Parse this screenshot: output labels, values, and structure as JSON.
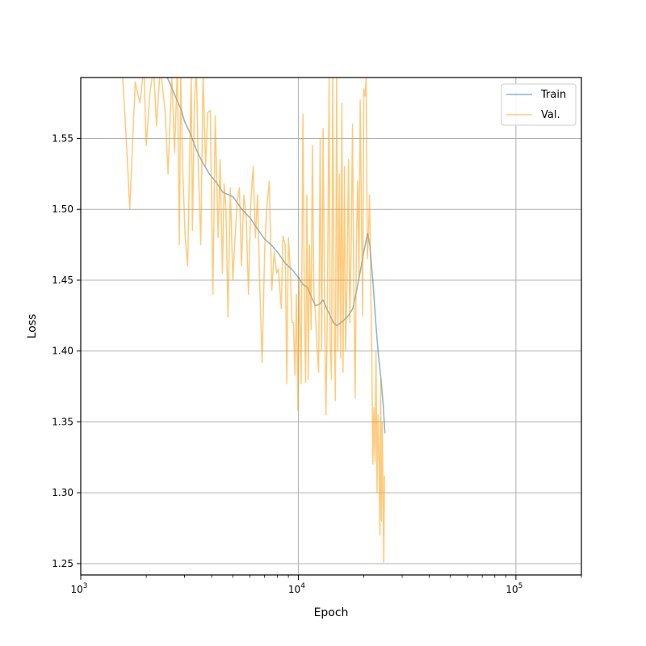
{
  "chart_data": {
    "type": "line",
    "xlabel": "Epoch",
    "ylabel": "Loss",
    "x_scale": "log",
    "xlim": [
      1000,
      200000
    ],
    "ylim": [
      1.242,
      1.593
    ],
    "x_ticks": [
      {
        "value": 1000,
        "base": "10",
        "exp": "3"
      },
      {
        "value": 10000,
        "base": "10",
        "exp": "4"
      },
      {
        "value": 100000,
        "base": "10",
        "exp": "5"
      }
    ],
    "y_ticks": [
      "1.25",
      "1.30",
      "1.35",
      "1.40",
      "1.45",
      "1.50",
      "1.55"
    ],
    "grid": true,
    "legend_position": "top-right",
    "series": [
      {
        "name": "Train",
        "color": "#1f77b4",
        "points": [
          [
            2500,
            1.593
          ],
          [
            2600,
            1.587
          ],
          [
            2750,
            1.578
          ],
          [
            2900,
            1.57
          ],
          [
            3000,
            1.562
          ],
          [
            3200,
            1.553
          ],
          [
            3400,
            1.542
          ],
          [
            3600,
            1.534
          ],
          [
            3900,
            1.525
          ],
          [
            4200,
            1.519
          ],
          [
            4500,
            1.512
          ],
          [
            5000,
            1.509
          ],
          [
            5500,
            1.5
          ],
          [
            6000,
            1.494
          ],
          [
            6500,
            1.486
          ],
          [
            7000,
            1.479
          ],
          [
            7500,
            1.475
          ],
          [
            8000,
            1.47
          ],
          [
            8700,
            1.462
          ],
          [
            9300,
            1.458
          ],
          [
            10000,
            1.452
          ],
          [
            10500,
            1.447
          ],
          [
            11000,
            1.445
          ],
          [
            11500,
            1.438
          ],
          [
            12000,
            1.432
          ],
          [
            12500,
            1.433
          ],
          [
            13000,
            1.436
          ],
          [
            13500,
            1.43
          ],
          [
            14000,
            1.425
          ],
          [
            14500,
            1.42
          ],
          [
            15000,
            1.418
          ],
          [
            16000,
            1.421
          ],
          [
            17000,
            1.425
          ],
          [
            17800,
            1.43
          ],
          [
            18500,
            1.442
          ],
          [
            19200,
            1.455
          ],
          [
            20000,
            1.47
          ],
          [
            20800,
            1.483
          ],
          [
            21300,
            1.475
          ],
          [
            22000,
            1.45
          ],
          [
            22700,
            1.42
          ],
          [
            23400,
            1.395
          ],
          [
            24000,
            1.38
          ],
          [
            24600,
            1.36
          ],
          [
            25000,
            1.342
          ]
        ]
      },
      {
        "name": "Val.",
        "color": "#ff9f0e",
        "points": [
          [
            1400,
            1.593
          ],
          [
            1550,
            1.6
          ],
          [
            1630,
            1.541
          ],
          [
            1680,
            1.5
          ],
          [
            1780,
            1.59
          ],
          [
            1870,
            1.575
          ],
          [
            1950,
            1.6
          ],
          [
            2000,
            1.545
          ],
          [
            2080,
            1.582
          ],
          [
            2160,
            1.6
          ],
          [
            2230,
            1.559
          ],
          [
            2320,
            1.6
          ],
          [
            2440,
            1.57
          ],
          [
            2520,
            1.525
          ],
          [
            2620,
            1.595
          ],
          [
            2700,
            1.54
          ],
          [
            2780,
            1.6
          ],
          [
            2840,
            1.475
          ],
          [
            2880,
            1.595
          ],
          [
            2940,
            1.53
          ],
          [
            3020,
            1.48
          ],
          [
            3100,
            1.46
          ],
          [
            3150,
            1.518
          ],
          [
            3220,
            1.595
          ],
          [
            3260,
            1.485
          ],
          [
            3330,
            1.575
          ],
          [
            3400,
            1.6
          ],
          [
            3470,
            1.53
          ],
          [
            3560,
            1.475
          ],
          [
            3650,
            1.595
          ],
          [
            3750,
            1.53
          ],
          [
            3830,
            1.568
          ],
          [
            3940,
            1.57
          ],
          [
            4050,
            1.44
          ],
          [
            4150,
            1.566
          ],
          [
            4280,
            1.48
          ],
          [
            4370,
            1.535
          ],
          [
            4480,
            1.455
          ],
          [
            4560,
            1.518
          ],
          [
            4650,
            1.5
          ],
          [
            4750,
            1.424
          ],
          [
            4870,
            1.515
          ],
          [
            5000,
            1.45
          ],
          [
            5100,
            1.475
          ],
          [
            5230,
            1.505
          ],
          [
            5360,
            1.515
          ],
          [
            5480,
            1.46
          ],
          [
            5620,
            1.51
          ],
          [
            5760,
            1.495
          ],
          [
            5900,
            1.44
          ],
          [
            6050,
            1.505
          ],
          [
            6200,
            1.53
          ],
          [
            6350,
            1.48
          ],
          [
            6500,
            1.51
          ],
          [
            6650,
            1.445
          ],
          [
            6820,
            1.392
          ],
          [
            7000,
            1.47
          ],
          [
            7150,
            1.5
          ],
          [
            7350,
            1.52
          ],
          [
            7550,
            1.443
          ],
          [
            7750,
            1.47
          ],
          [
            7950,
            1.455
          ],
          [
            8100,
            1.458
          ],
          [
            8350,
            1.43
          ],
          [
            8500,
            1.481
          ],
          [
            8700,
            1.475
          ],
          [
            8850,
            1.377
          ],
          [
            9000,
            1.48
          ],
          [
            9200,
            1.455
          ],
          [
            9350,
            1.42
          ],
          [
            9500,
            1.42
          ],
          [
            9650,
            1.383
          ],
          [
            9800,
            1.44
          ],
          [
            9950,
            1.358
          ],
          [
            10100,
            1.452
          ],
          [
            10300,
            1.377
          ],
          [
            10500,
            1.567
          ],
          [
            10650,
            1.44
          ],
          [
            10800,
            1.378
          ],
          [
            10950,
            1.51
          ],
          [
            11100,
            1.38
          ],
          [
            11250,
            1.475
          ],
          [
            11450,
            1.415
          ],
          [
            11600,
            1.545
          ],
          [
            11800,
            1.44
          ],
          [
            12000,
            1.425
          ],
          [
            12200,
            1.4
          ],
          [
            12400,
            1.385
          ],
          [
            12600,
            1.55
          ],
          [
            12800,
            1.4
          ],
          [
            13000,
            1.557
          ],
          [
            13200,
            1.43
          ],
          [
            13400,
            1.355
          ],
          [
            13600,
            1.43
          ],
          [
            13850,
            1.593
          ],
          [
            14000,
            1.41
          ],
          [
            14200,
            1.38
          ],
          [
            14400,
            1.593
          ],
          [
            14600,
            1.425
          ],
          [
            14800,
            1.365
          ],
          [
            15000,
            1.593
          ],
          [
            15200,
            1.4
          ],
          [
            15450,
            1.525
          ],
          [
            15650,
            1.395
          ],
          [
            15850,
            1.575
          ],
          [
            16050,
            1.385
          ],
          [
            16300,
            1.53
          ],
          [
            16500,
            1.4
          ],
          [
            16750,
            1.45
          ],
          [
            17000,
            1.535
          ],
          [
            17250,
            1.42
          ],
          [
            17500,
            1.475
          ],
          [
            17750,
            1.56
          ],
          [
            18000,
            1.44
          ],
          [
            18250,
            1.367
          ],
          [
            18500,
            1.48
          ],
          [
            18750,
            1.52
          ],
          [
            19000,
            1.45
          ],
          [
            19250,
            1.577
          ],
          [
            19500,
            1.5
          ],
          [
            19750,
            1.425
          ],
          [
            20000,
            1.585
          ],
          [
            20250,
            1.58
          ],
          [
            20500,
            1.593
          ],
          [
            20750,
            1.465
          ],
          [
            21000,
            1.48
          ],
          [
            21250,
            1.51
          ],
          [
            21500,
            1.45
          ],
          [
            21750,
            1.4
          ],
          [
            22000,
            1.32
          ],
          [
            22250,
            1.36
          ],
          [
            22500,
            1.322
          ],
          [
            22750,
            1.4
          ],
          [
            23000,
            1.3
          ],
          [
            23250,
            1.355
          ],
          [
            23500,
            1.32
          ],
          [
            23700,
            1.27
          ],
          [
            23900,
            1.38
          ],
          [
            24100,
            1.28
          ],
          [
            24300,
            1.35
          ],
          [
            24500,
            1.3
          ],
          [
            24700,
            1.251
          ],
          [
            24900,
            1.312
          ]
        ]
      }
    ]
  }
}
